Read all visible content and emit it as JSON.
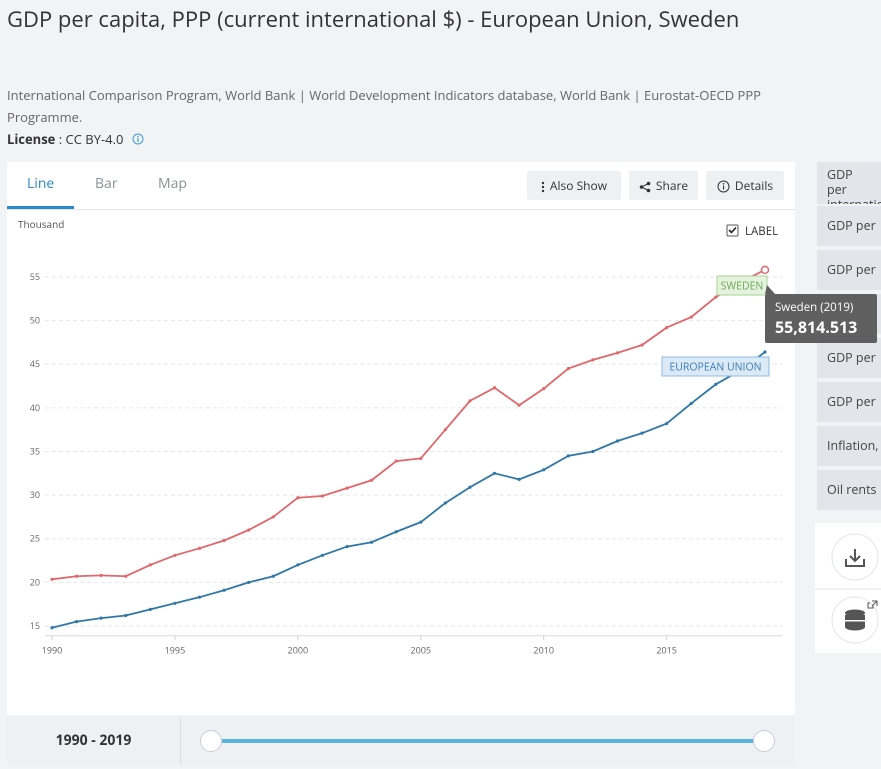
{
  "header": {
    "title": "GDP per capita, PPP (current international $) - European Union, Sweden",
    "source": "International Comparison Program, World Bank | World Development Indicators database, World Bank | Eurostat-OECD PPP Programme.",
    "license_label": "License",
    "license_value": ": CC BY-4.0"
  },
  "tabs": [
    "Line",
    "Bar",
    "Map"
  ],
  "actions": [
    "Also Show",
    "Share",
    "Details"
  ],
  "label_toggle": "LABEL",
  "range": "1990 - 2019",
  "sidebar": [
    "GDP per internatio",
    "GDP per",
    "GDP per",
    "GDP per",
    "GDP per",
    "Inflation,",
    "Oil rents"
  ],
  "chart_data": {
    "type": "line",
    "y_label": "Thousand",
    "x": [
      1990,
      1991,
      1992,
      1993,
      1994,
      1995,
      1996,
      1997,
      1998,
      1999,
      2000,
      2001,
      2002,
      2003,
      2004,
      2005,
      2006,
      2007,
      2008,
      2009,
      2010,
      2011,
      2012,
      2013,
      2014,
      2015,
      2016,
      2017,
      2018,
      2019
    ],
    "xlim": [
      1990,
      2019
    ],
    "xticks": [
      1990,
      1995,
      2000,
      2005,
      2010,
      2015
    ],
    "ylim": [
      14,
      58
    ],
    "yticks": [
      15,
      20,
      25,
      30,
      35,
      40,
      45,
      50,
      55
    ],
    "grid": true,
    "series": [
      {
        "name": "SWEDEN",
        "color": "#e0676b",
        "values": [
          20.35,
          20.7,
          20.8,
          20.7,
          22.0,
          23.1,
          23.9,
          24.8,
          26.0,
          27.5,
          29.7,
          29.9,
          30.8,
          31.7,
          33.9,
          34.2,
          37.5,
          40.8,
          42.3,
          40.3,
          42.2,
          44.5,
          45.5,
          46.3,
          47.2,
          49.2,
          50.4,
          52.7,
          54.4,
          55.814513
        ],
        "value_labels": [
          null,
          null,
          null,
          null,
          null,
          null,
          null,
          null,
          null,
          null,
          null,
          null,
          null,
          null,
          null,
          null,
          null,
          null,
          null,
          null,
          null,
          null,
          null,
          null,
          null,
          null,
          null,
          null,
          null,
          "55,814.513"
        ]
      },
      {
        "name": "EUROPEAN UNION",
        "color": "#2f77a6",
        "values": [
          14.8,
          15.5,
          15.9,
          16.2,
          16.9,
          17.6,
          18.3,
          19.1,
          20.0,
          20.7,
          22.0,
          23.1,
          24.1,
          24.6,
          25.8,
          26.9,
          29.1,
          30.9,
          32.5,
          31.8,
          32.9,
          34.5,
          35.0,
          36.2,
          37.1,
          38.2,
          40.5,
          42.7,
          44.3,
          46.4
        ]
      }
    ],
    "tooltip_title": "Sweden (2019)"
  }
}
